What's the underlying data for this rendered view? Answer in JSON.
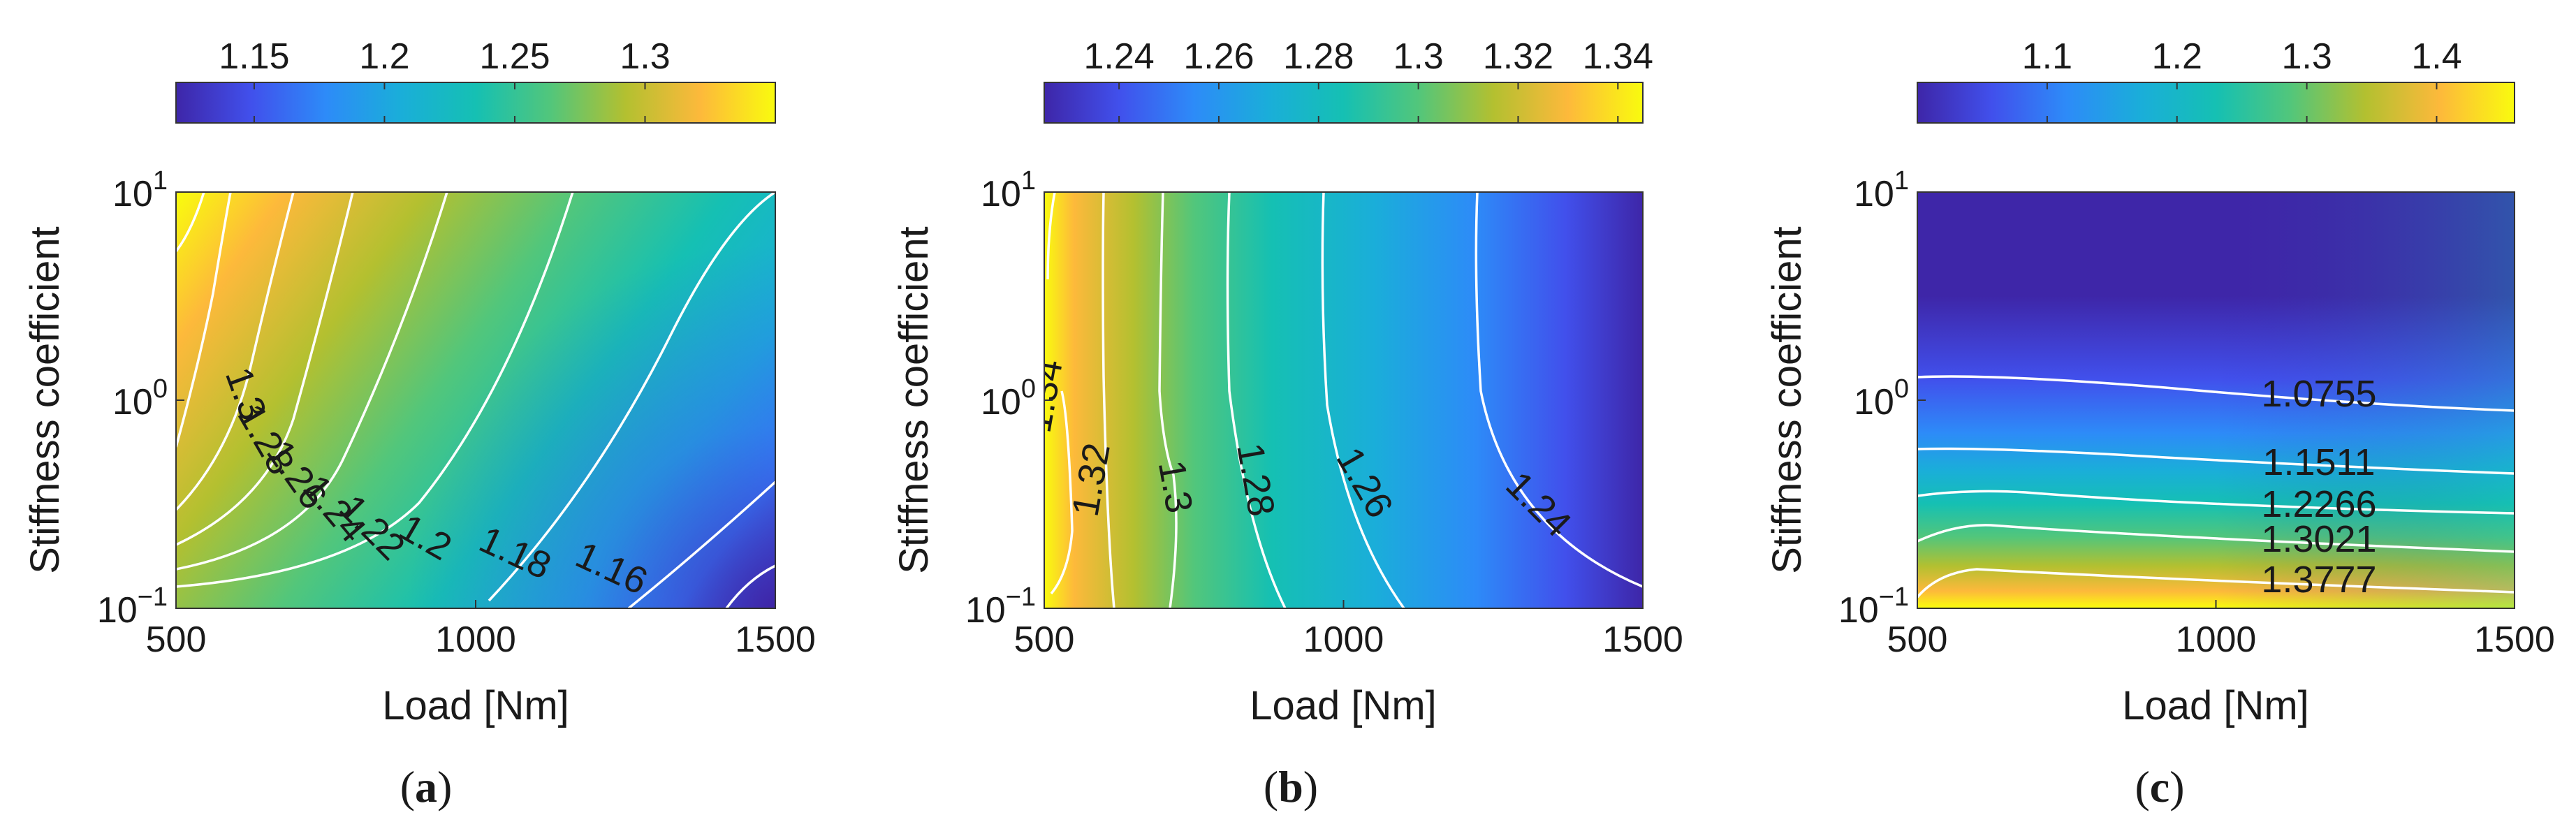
{
  "figure": {
    "background": "#ffffff",
    "colormap": [
      "#3e26a8",
      "#4150ec",
      "#2d8bf8",
      "#1aaed9",
      "#15c0b3",
      "#52c67b",
      "#b3c030",
      "#fdb93b",
      "#f9fb0e"
    ]
  },
  "chart_data": [
    {
      "id": "a",
      "type": "heatmap",
      "panel_label": {
        "open": "(",
        "letter": "a",
        "close": ")"
      },
      "xlabel": "Load [Nm]",
      "ylabel": "Stiffness coefficient",
      "xlim": [
        500,
        1500
      ],
      "ylim": [
        0.1,
        10
      ],
      "yscale": "log",
      "xticks": [
        "500",
        "1000",
        "1500"
      ],
      "yticks": [
        {
          "base": "10",
          "exp": "−1"
        },
        {
          "base": "10",
          "exp": "0"
        },
        {
          "base": "10",
          "exp": "1"
        }
      ],
      "colorbar": {
        "clim": [
          1.12,
          1.35
        ],
        "ticks": [
          1.15,
          1.2,
          1.25,
          1.3
        ],
        "tick_labels": [
          "1.15",
          "1.2",
          "1.25",
          "1.3"
        ]
      },
      "contour_labels": [
        "1.3",
        "1.28",
        "1.26",
        "1.24",
        "1.22",
        "1.2",
        "1.18",
        "1.16"
      ]
    },
    {
      "id": "b",
      "type": "heatmap",
      "panel_label": {
        "open": "(",
        "letter": "b",
        "close": ")"
      },
      "xlabel": "Load [Nm]",
      "ylabel": "Stiffness coefficient",
      "xlim": [
        500,
        1500
      ],
      "ylim": [
        0.1,
        10
      ],
      "yscale": "log",
      "xticks": [
        "500",
        "1000",
        "1500"
      ],
      "yticks": [
        {
          "base": "10",
          "exp": "−1"
        },
        {
          "base": "10",
          "exp": "0"
        },
        {
          "base": "10",
          "exp": "1"
        }
      ],
      "colorbar": {
        "clim": [
          1.225,
          1.345
        ],
        "ticks": [
          1.24,
          1.26,
          1.28,
          1.3,
          1.32,
          1.34
        ],
        "tick_labels": [
          "1.24",
          "1.26",
          "1.28",
          "1.3",
          "1.32",
          "1.34"
        ]
      },
      "contour_labels": [
        "1.34",
        "1.32",
        "1.3",
        "1.28",
        "1.26",
        "1.24"
      ]
    },
    {
      "id": "c",
      "type": "heatmap",
      "panel_label": {
        "open": "(",
        "letter": "c",
        "close": ")"
      },
      "xlabel": "Load [Nm]",
      "ylabel": "Stiffness coefficient",
      "xlim": [
        500,
        1500
      ],
      "ylim": [
        0.1,
        10
      ],
      "yscale": "log",
      "xticks": [
        "500",
        "1000",
        "1500"
      ],
      "yticks": [
        {
          "base": "10",
          "exp": "−1"
        },
        {
          "base": "10",
          "exp": "0"
        },
        {
          "base": "10",
          "exp": "1"
        }
      ],
      "colorbar": {
        "clim": [
          1.0,
          1.46
        ],
        "ticks": [
          1.1,
          1.2,
          1.3,
          1.4
        ],
        "tick_labels": [
          "1.1",
          "1.2",
          "1.3",
          "1.4"
        ]
      },
      "contour_labels": [
        "1.0755",
        "1.1511",
        "1.2266",
        "1.3021",
        "1.3777"
      ]
    }
  ]
}
